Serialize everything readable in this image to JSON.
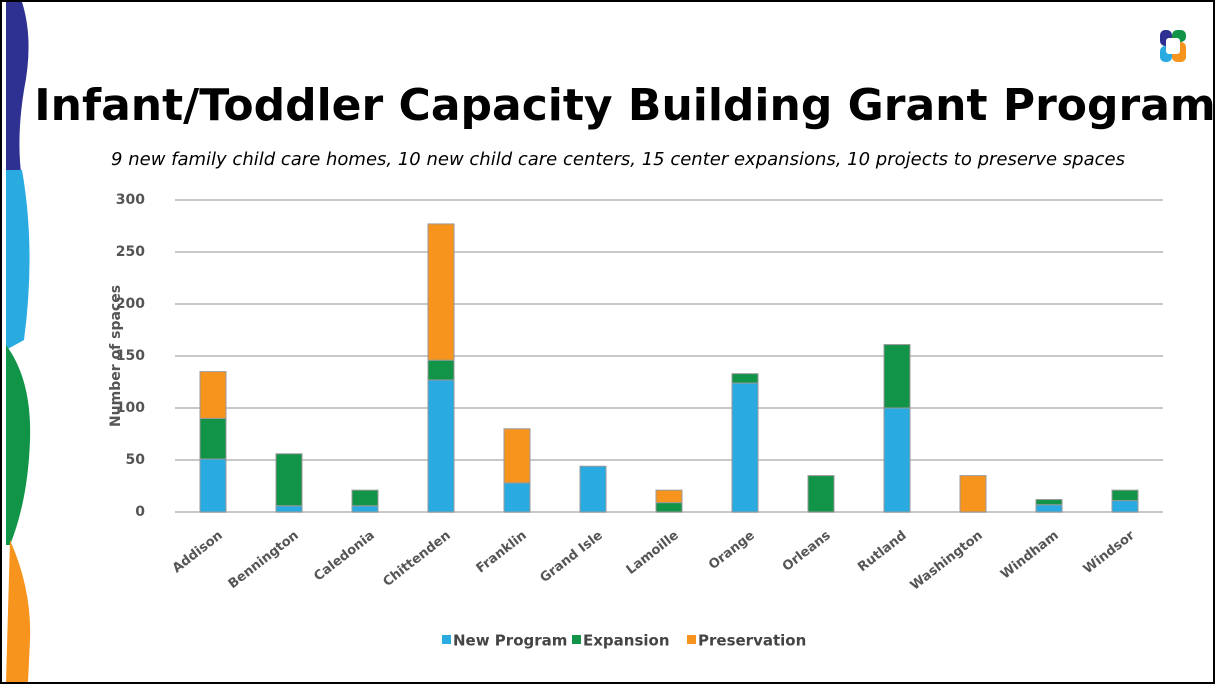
{
  "chart_data": {
    "type": "stacked-bar",
    "title": "Infant/Toddler Capacity Building Grant Program",
    "subtitle": "9 new family child care homes, 10 new child care centers, 15 center expansions, 10 projects to preserve spaces",
    "y_label": "Number of spaces",
    "categories": [
      "Addison",
      "Bennington",
      "Caledonia",
      "Chittenden",
      "Franklin",
      "Grand Isle",
      "Lamoille",
      "Orange",
      "Orleans",
      "Rutland",
      "Washington",
      "Windham",
      "Windsor"
    ],
    "series": [
      {
        "name": "New Program",
        "color": "#29abe2",
        "values": [
          51,
          6,
          6,
          127,
          28,
          44,
          0,
          124,
          0,
          100,
          0,
          7,
          11
        ]
      },
      {
        "name": "Expansion",
        "color": "#119447",
        "values": [
          39,
          50,
          15,
          19,
          0,
          0,
          9,
          9,
          35,
          61,
          0,
          5,
          10
        ]
      },
      {
        "name": "Preservation",
        "color": "#f7941d",
        "values": [
          45,
          0,
          0,
          131,
          52,
          0,
          12,
          0,
          0,
          0,
          35,
          0,
          0
        ]
      }
    ],
    "ylim": [
      0,
      300
    ],
    "yticks": [
      0,
      50,
      100,
      150,
      200,
      250,
      300
    ],
    "grid": true,
    "legend": "bottom"
  }
}
